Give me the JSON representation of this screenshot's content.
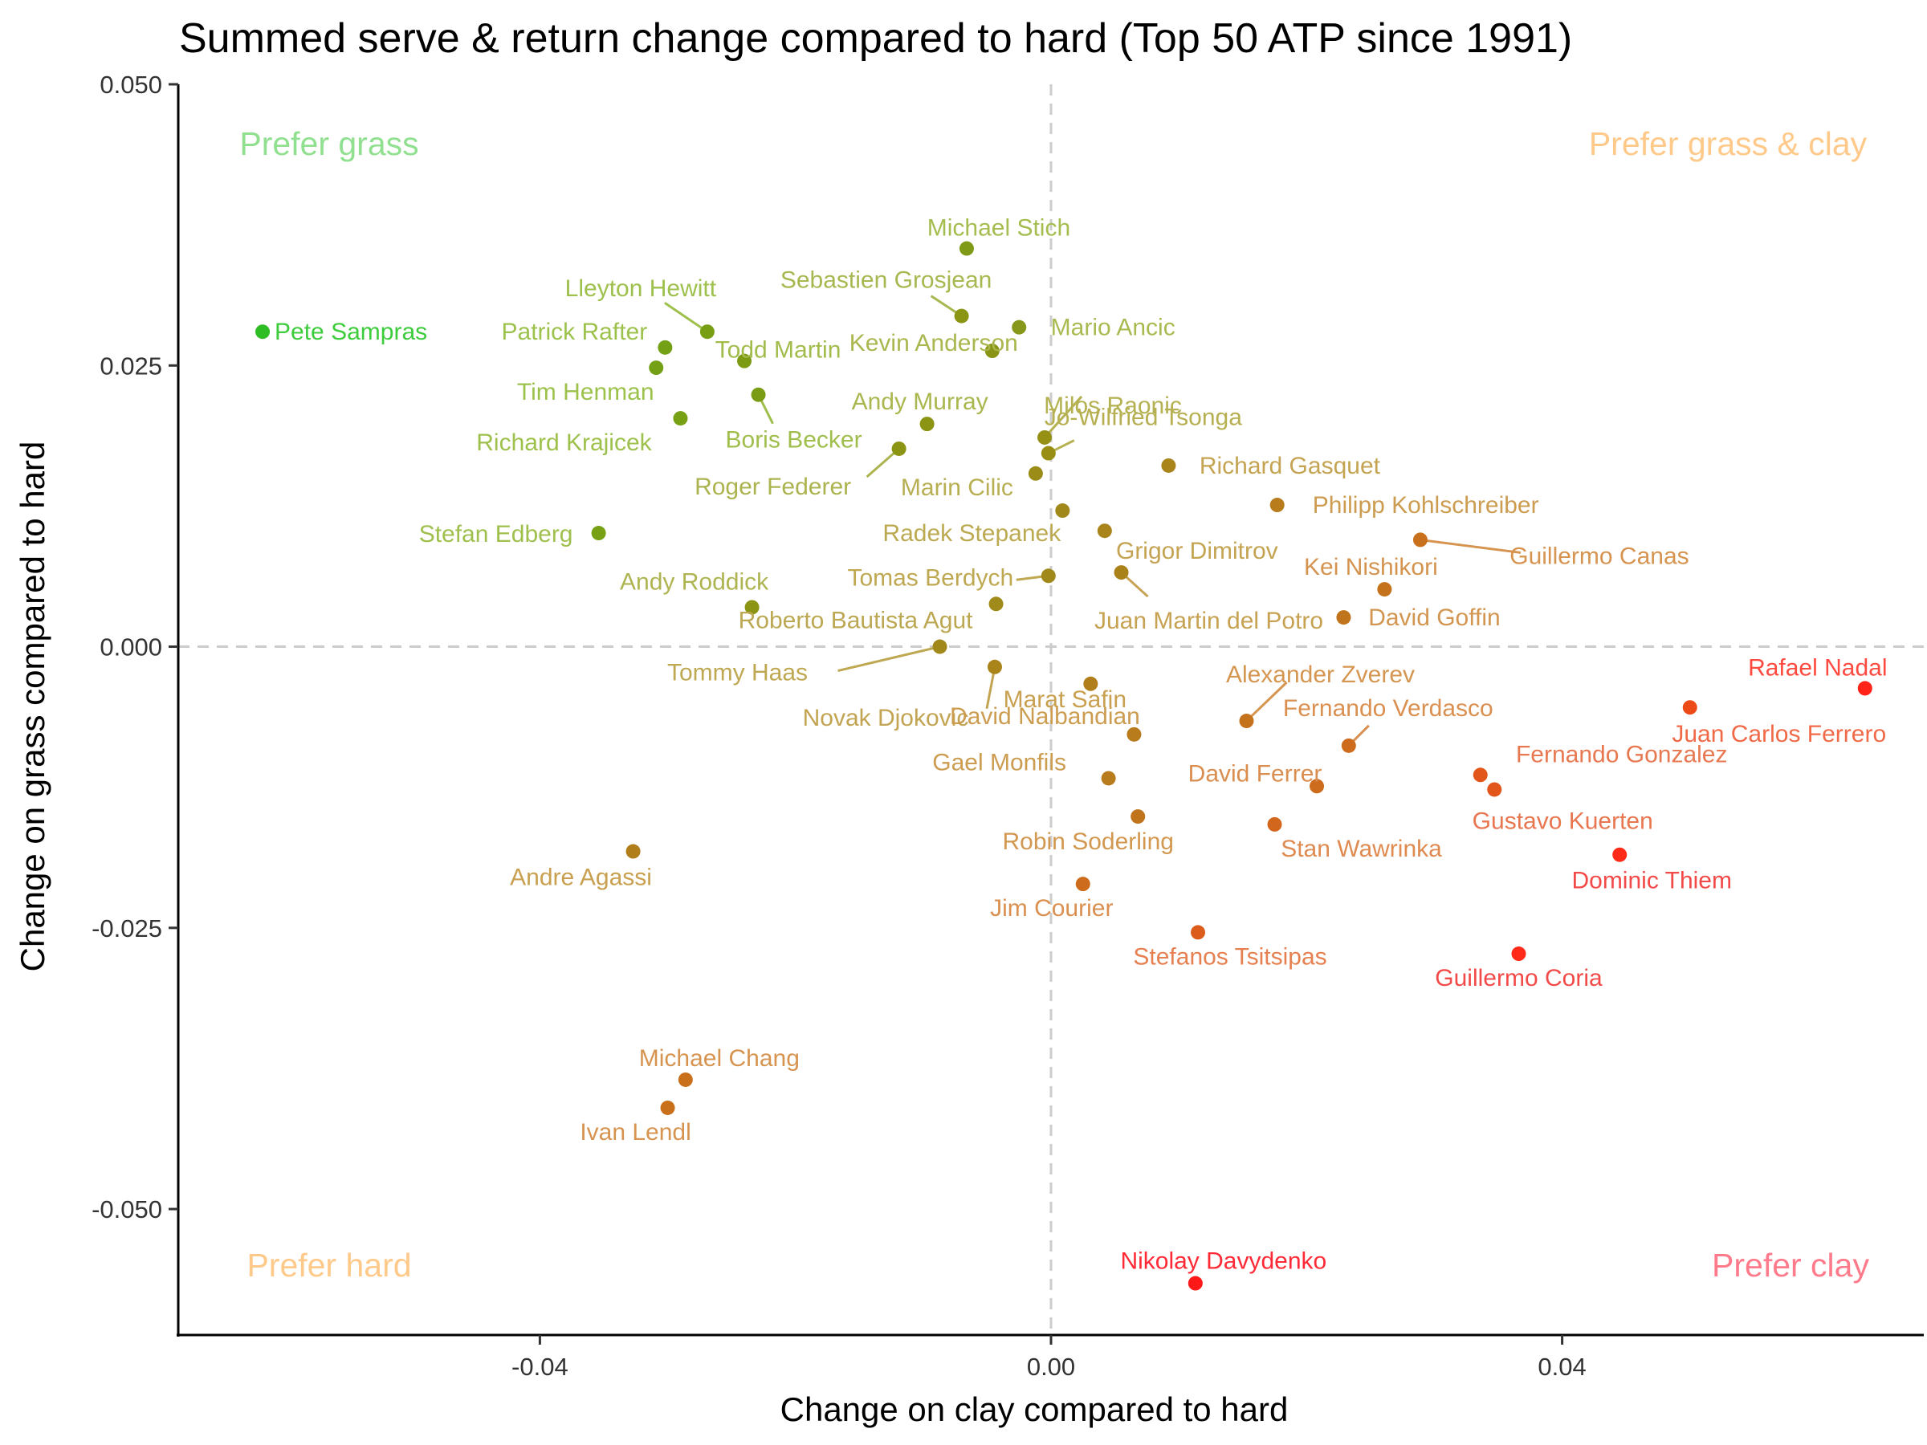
{
  "chart_data": {
    "type": "scatter",
    "title": "Summed serve & return change compared to hard (Top 50 ATP since 1991)",
    "xlabel": "Change on clay compared to hard",
    "ylabel": "Change on grass compared to hard",
    "xlim": [
      -0.0683,
      0.0683
    ],
    "ylim": [
      -0.0612,
      0.05
    ],
    "x_ticks": [
      {
        "value": -0.04,
        "label": "-0.04"
      },
      {
        "value": 0.0,
        "label": "0.00"
      },
      {
        "value": 0.04,
        "label": "0.04"
      }
    ],
    "y_ticks": [
      {
        "value": 0.05,
        "label": "0.050"
      },
      {
        "value": 0.025,
        "label": "0.025"
      },
      {
        "value": 0.0,
        "label": "0.000"
      },
      {
        "value": -0.025,
        "label": "-0.025"
      },
      {
        "value": -0.05,
        "label": "-0.050"
      }
    ],
    "reference_lines": {
      "x": 0,
      "y": 0,
      "style": "dashed",
      "color": "#cccccc"
    },
    "grid": false,
    "legend": "none",
    "color_scale": {
      "grass": "#22cc22",
      "clay": "#ff1a1a"
    },
    "quadrant_labels": [
      {
        "text": "Prefer grass",
        "position": "top-left",
        "color": "#90e090"
      },
      {
        "text": "Prefer grass & clay",
        "position": "top-right",
        "color": "#ffc98a"
      },
      {
        "text": "Prefer hard",
        "position": "bottom-left",
        "color": "#ffc98a"
      },
      {
        "text": "Prefer clay",
        "position": "bottom-right",
        "color": "#ff7a8a"
      }
    ],
    "points": [
      {
        "name": "Pete Sampras",
        "x": -0.0617,
        "y": 0.028,
        "color": "#2ebd22",
        "label_color": "#3ccc3c"
      },
      {
        "name": "Michael Stich",
        "x": -0.0066,
        "y": 0.0354,
        "color": "#7f9a16",
        "label_color": "#a4bd4e"
      },
      {
        "name": "Sebastien Grosjean",
        "x": -0.007,
        "y": 0.0294,
        "color": "#8a9514",
        "label_color": "#a8b850"
      },
      {
        "name": "Lleyton Hewitt",
        "x": -0.0269,
        "y": 0.028,
        "color": "#789e14",
        "label_color": "#9ec04c"
      },
      {
        "name": "Patrick Rafter",
        "x": -0.0302,
        "y": 0.0266,
        "color": "#73a014",
        "label_color": "#9cc24c"
      },
      {
        "name": "Todd Martin",
        "x": -0.024,
        "y": 0.0254,
        "color": "#7d9a14",
        "label_color": "#a2bc4c"
      },
      {
        "name": "Kevin Anderson",
        "x": -0.0046,
        "y": 0.0263,
        "color": "#8a9414",
        "label_color": "#aab64e"
      },
      {
        "name": "Mario Ancic",
        "x": -0.0025,
        "y": 0.0284,
        "color": "#86971a",
        "label_color": "#a8bb50"
      },
      {
        "name": "Tim Henman",
        "x": -0.0309,
        "y": 0.0248,
        "color": "#73a014",
        "label_color": "#9cc24c"
      },
      {
        "name": "Boris Becker",
        "x": -0.0229,
        "y": 0.0224,
        "color": "#7a9c14",
        "label_color": "#a0be4c"
      },
      {
        "name": "Milos Raonic",
        "x": -0.0005,
        "y": 0.0186,
        "color": "#969014",
        "label_color": "#b4b252"
      },
      {
        "name": "Richard Krajicek",
        "x": -0.029,
        "y": 0.0203,
        "color": "#78a014",
        "label_color": "#9ec04c"
      },
      {
        "name": "Andy Murray",
        "x": -0.0097,
        "y": 0.0198,
        "color": "#8c9414",
        "label_color": "#aab64e"
      },
      {
        "name": "Jo-Wilfried Tsonga",
        "x": -0.0002,
        "y": 0.0172,
        "color": "#988e14",
        "label_color": "#b6b052"
      },
      {
        "name": "Roger Federer",
        "x": -0.0119,
        "y": 0.0176,
        "color": "#8c9414",
        "label_color": "#acb450"
      },
      {
        "name": "Marin Cilic",
        "x": -0.0012,
        "y": 0.0154,
        "color": "#9a8c16",
        "label_color": "#b8ae52"
      },
      {
        "name": "Richard Gasquet",
        "x": 0.0092,
        "y": 0.0161,
        "color": "#a8841a",
        "label_color": "#c4a452"
      },
      {
        "name": "Radek Stepanek",
        "x": 0.0009,
        "y": 0.0121,
        "color": "#a0881a",
        "label_color": "#bcaa52"
      },
      {
        "name": "Philipp Kohlschreiber",
        "x": 0.0177,
        "y": 0.0126,
        "color": "#b87c1c",
        "label_color": "#cc9c50"
      },
      {
        "name": "Stefan Edberg",
        "x": -0.0354,
        "y": 0.0101,
        "color": "#78a014",
        "label_color": "#a0c04e"
      },
      {
        "name": "Guillermo Canas",
        "x": 0.0289,
        "y": 0.0095,
        "color": "#c8701c",
        "label_color": "#d69450"
      },
      {
        "name": "Grigor Dimitrov",
        "x": 0.0042,
        "y": 0.0103,
        "color": "#a8841a",
        "label_color": "#c4a452"
      },
      {
        "name": "Kei Nishikori",
        "x": 0.0261,
        "y": 0.0051,
        "color": "#c4721c",
        "label_color": "#d49450"
      },
      {
        "name": "Tomas Berdych",
        "x": -0.0002,
        "y": 0.0063,
        "color": "#a0881a",
        "label_color": "#bea852"
      },
      {
        "name": "Juan Martin del Potro",
        "x": 0.0055,
        "y": 0.0066,
        "color": "#aa821a",
        "label_color": "#c6a252"
      },
      {
        "name": "Andy Roddick",
        "x": -0.0234,
        "y": 0.0035,
        "color": "#8c9414",
        "label_color": "#aeb450"
      },
      {
        "name": "Roberto Bautista Agut",
        "x": -0.0043,
        "y": 0.0038,
        "color": "#a08a1a",
        "label_color": "#bca852"
      },
      {
        "name": "David Goffin",
        "x": 0.0229,
        "y": 0.0026,
        "color": "#c0741c",
        "label_color": "#d29650"
      },
      {
        "name": "Tommy Haas",
        "x": -0.0087,
        "y": 0.0,
        "color": "#a0881a",
        "label_color": "#bea852"
      },
      {
        "name": "Marat Safin",
        "x": 0.0031,
        "y": -0.0033,
        "color": "#b07e1a",
        "label_color": "#c8a050"
      },
      {
        "name": "Novak Djokovic",
        "x": -0.0044,
        "y": -0.0018,
        "color": "#a8841a",
        "label_color": "#c2a452"
      },
      {
        "name": "Rafael Nadal",
        "x": 0.0637,
        "y": -0.0037,
        "color": "#ff2218",
        "label_color": "#ff4a40"
      },
      {
        "name": "Alexander Zverev",
        "x": 0.0153,
        "y": -0.0066,
        "color": "#c4721c",
        "label_color": "#d49650"
      },
      {
        "name": "Juan Carlos Ferrero",
        "x": 0.05,
        "y": -0.0054,
        "color": "#ec4a16",
        "label_color": "#f06a48"
      },
      {
        "name": "David Nalbandian",
        "x": 0.0065,
        "y": -0.0078,
        "color": "#b87c1c",
        "label_color": "#cc9c50"
      },
      {
        "name": "Fernando Verdasco",
        "x": 0.0233,
        "y": -0.0088,
        "color": "#cc6c1c",
        "label_color": "#da9050"
      },
      {
        "name": "Fernando Gonzalez",
        "x": 0.0336,
        "y": -0.0114,
        "color": "#e2561c",
        "label_color": "#e87850"
      },
      {
        "name": "Gael Monfils",
        "x": 0.0045,
        "y": -0.0117,
        "color": "#b87c1c",
        "label_color": "#cc9c50"
      },
      {
        "name": "David Ferrer",
        "x": 0.0208,
        "y": -0.0124,
        "color": "#cc6c1c",
        "label_color": "#da8e50"
      },
      {
        "name": "Gustavo Kuerten",
        "x": 0.0347,
        "y": -0.0127,
        "color": "#e2561c",
        "label_color": "#e87650"
      },
      {
        "name": "Robin Soderling",
        "x": 0.0068,
        "y": -0.0151,
        "color": "#c0741c",
        "label_color": "#d29850"
      },
      {
        "name": "Stan Wawrinka",
        "x": 0.0175,
        "y": -0.0158,
        "color": "#d2661c",
        "label_color": "#de8a50"
      },
      {
        "name": "Andre Agassi",
        "x": -0.0327,
        "y": -0.0182,
        "color": "#b07e1a",
        "label_color": "#c8a050"
      },
      {
        "name": "Dominic Thiem",
        "x": 0.0445,
        "y": -0.0185,
        "color": "#ff2a18",
        "label_color": "#f24a48"
      },
      {
        "name": "Jim Courier",
        "x": 0.0025,
        "y": -0.0211,
        "color": "#cc6c1c",
        "label_color": "#da9050"
      },
      {
        "name": "Stefanos Tsitsipas",
        "x": 0.0115,
        "y": -0.0254,
        "color": "#dc5c1c",
        "label_color": "#e68050"
      },
      {
        "name": "Guillermo Coria",
        "x": 0.0366,
        "y": -0.0273,
        "color": "#ff2a18",
        "label_color": "#f24a48"
      },
      {
        "name": "Michael Chang",
        "x": -0.0286,
        "y": -0.0385,
        "color": "#c8701c",
        "label_color": "#d69450"
      },
      {
        "name": "Ivan Lendl",
        "x": -0.03,
        "y": -0.041,
        "color": "#c8701c",
        "label_color": "#d69450"
      },
      {
        "name": "Nikolay Davydenko",
        "x": 0.0113,
        "y": -0.0566,
        "color": "#ff1818",
        "label_color": "#ff2a36"
      }
    ]
  }
}
